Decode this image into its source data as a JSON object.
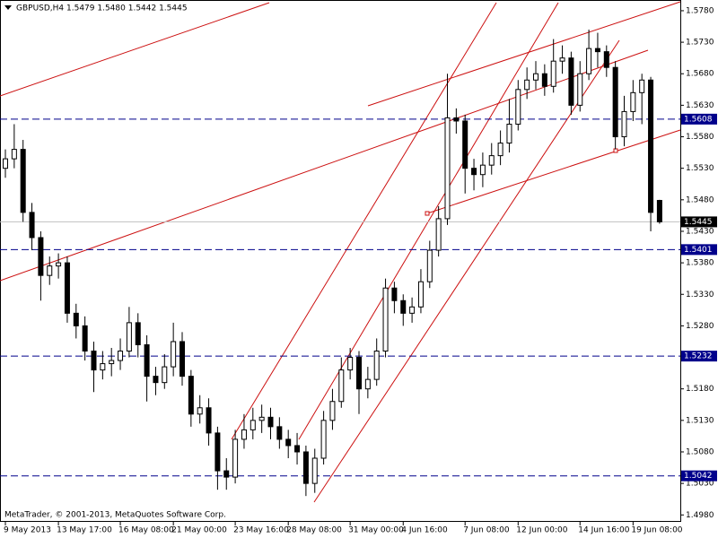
{
  "chart_data": {
    "type": "candlestick",
    "title": "GBPUSD,H4  1.5479 1.5480 1.5442 1.5445",
    "footer": "MetaTrader, © 2001-2013, MetaQuotes Software Corp.",
    "up_color": "#ffffff",
    "down_color": "#000000",
    "wick_color": "#000000",
    "open": [
      1.553,
      1.5545,
      1.556,
      1.546,
      1.542,
      1.536,
      1.5375,
      1.538,
      1.53,
      1.528,
      1.524,
      1.521,
      1.522,
      1.5225,
      1.524,
      1.5285,
      1.525,
      1.52,
      1.519,
      1.5215,
      1.5255,
      1.52,
      1.514,
      1.515,
      1.511,
      1.505,
      1.504,
      1.51,
      1.5115,
      1.513,
      1.5135,
      1.512,
      1.51,
      1.509,
      1.508,
      1.503,
      1.507,
      1.513,
      1.516,
      1.521,
      1.523,
      1.518,
      1.5195,
      1.524,
      1.534,
      1.532,
      1.53,
      1.531,
      1.535,
      1.54,
      1.545,
      1.561,
      1.5605,
      1.553,
      1.552,
      1.5535,
      1.555,
      1.557,
      1.56,
      1.5655,
      1.567,
      1.568,
      1.566,
      1.57,
      1.5705,
      1.563,
      1.568,
      1.572,
      1.5715,
      1.569,
      1.558,
      1.562,
      1.565,
      1.567,
      1.5479
    ],
    "high": [
      1.556,
      1.56,
      1.5575,
      1.5475,
      1.543,
      1.539,
      1.5395,
      1.539,
      1.5315,
      1.5295,
      1.5255,
      1.524,
      1.5245,
      1.526,
      1.531,
      1.53,
      1.5265,
      1.5215,
      1.5235,
      1.5285,
      1.527,
      1.521,
      1.517,
      1.5165,
      1.512,
      1.507,
      1.5115,
      1.514,
      1.515,
      1.5155,
      1.515,
      1.5135,
      1.5115,
      1.511,
      1.509,
      1.5085,
      1.5145,
      1.518,
      1.523,
      1.5245,
      1.524,
      1.5215,
      1.526,
      1.5355,
      1.535,
      1.533,
      1.5325,
      1.537,
      1.5415,
      1.547,
      1.568,
      1.5625,
      1.5615,
      1.5545,
      1.5555,
      1.557,
      1.559,
      1.564,
      1.567,
      1.569,
      1.57,
      1.5695,
      1.5735,
      1.5725,
      1.5715,
      1.57,
      1.575,
      1.5745,
      1.5725,
      1.57,
      1.5645,
      1.567,
      1.568,
      1.5675,
      1.548
    ],
    "low": [
      1.5515,
      1.553,
      1.5445,
      1.54,
      1.532,
      1.5345,
      1.5355,
      1.5285,
      1.526,
      1.5225,
      1.5175,
      1.5195,
      1.52,
      1.521,
      1.523,
      1.523,
      1.516,
      1.517,
      1.518,
      1.52,
      1.5185,
      1.512,
      1.5125,
      1.509,
      1.502,
      1.502,
      1.503,
      1.5085,
      1.51,
      1.511,
      1.51,
      1.5085,
      1.507,
      1.506,
      1.501,
      1.5015,
      1.506,
      1.5115,
      1.515,
      1.5195,
      1.514,
      1.5165,
      1.5185,
      1.523,
      1.53,
      1.528,
      1.5285,
      1.53,
      1.534,
      1.539,
      1.544,
      1.5585,
      1.549,
      1.5495,
      1.55,
      1.552,
      1.5535,
      1.5555,
      1.559,
      1.564,
      1.5655,
      1.5645,
      1.565,
      1.568,
      1.5615,
      1.562,
      1.567,
      1.569,
      1.5675,
      1.556,
      1.5565,
      1.5605,
      1.56,
      1.543,
      1.5442
    ],
    "close": [
      1.5545,
      1.556,
      1.546,
      1.542,
      1.536,
      1.5375,
      1.538,
      1.53,
      1.528,
      1.524,
      1.521,
      1.522,
      1.5225,
      1.524,
      1.5285,
      1.525,
      1.52,
      1.519,
      1.5215,
      1.5255,
      1.52,
      1.514,
      1.515,
      1.511,
      1.505,
      1.504,
      1.51,
      1.5115,
      1.513,
      1.5135,
      1.512,
      1.51,
      1.509,
      1.508,
      1.503,
      1.507,
      1.513,
      1.516,
      1.521,
      1.523,
      1.518,
      1.5195,
      1.524,
      1.534,
      1.532,
      1.53,
      1.531,
      1.535,
      1.54,
      1.545,
      1.561,
      1.5605,
      1.553,
      1.552,
      1.5535,
      1.555,
      1.557,
      1.56,
      1.5655,
      1.567,
      1.568,
      1.566,
      1.57,
      1.5705,
      1.563,
      1.568,
      1.572,
      1.5715,
      1.569,
      1.558,
      1.562,
      1.565,
      1.567,
      1.546,
      1.5445
    ],
    "xticks": [
      {
        "value": 0,
        "label": "9 May 2013"
      },
      {
        "value": 6,
        "label": "13 May 17:00"
      },
      {
        "value": 13,
        "label": "16 May 08:00"
      },
      {
        "value": 19,
        "label": "21 May 00:00"
      },
      {
        "value": 26,
        "label": "23 May 16:00"
      },
      {
        "value": 32,
        "label": "28 May 08:00"
      },
      {
        "value": 39,
        "label": "31 May 00:00"
      },
      {
        "value": 45,
        "label": "4 Jun 16:00"
      },
      {
        "value": 52,
        "label": "7 Jun 08:00"
      },
      {
        "value": 58,
        "label": "12 Jun 00:00"
      },
      {
        "value": 65,
        "label": "14 Jun 16:00"
      },
      {
        "value": 71,
        "label": "19 Jun 08:00"
      }
    ],
    "ylim": [
      1.4969,
      1.5797
    ],
    "yticks": [
      {
        "value": 1.578,
        "label": "1.5780"
      },
      {
        "value": 1.573,
        "label": "1.5730"
      },
      {
        "value": 1.568,
        "label": "1.5680"
      },
      {
        "value": 1.563,
        "label": "1.5630"
      },
      {
        "value": 1.558,
        "label": "1.5580"
      },
      {
        "value": 1.553,
        "label": "1.5530"
      },
      {
        "value": 1.548,
        "label": "1.5480"
      },
      {
        "value": 1.543,
        "label": "1.5430"
      },
      {
        "value": 1.538,
        "label": "1.5380"
      },
      {
        "value": 1.533,
        "label": "1.5330"
      },
      {
        "value": 1.528,
        "label": "1.5280"
      },
      {
        "value": 1.523,
        "label": "1.5230"
      },
      {
        "value": 1.518,
        "label": "1.5180"
      },
      {
        "value": 1.513,
        "label": "1.5130"
      },
      {
        "value": 1.508,
        "label": "1.5080"
      },
      {
        "value": 1.503,
        "label": "1.5030"
      },
      {
        "value": 1.498,
        "label": "1.4980"
      }
    ],
    "levels": [
      1.5608,
      1.5401,
      1.5232,
      1.5042
    ],
    "level_color": "#00008b",
    "last_price": 1.5445,
    "last_price_color": "#c0c0c0"
  }
}
